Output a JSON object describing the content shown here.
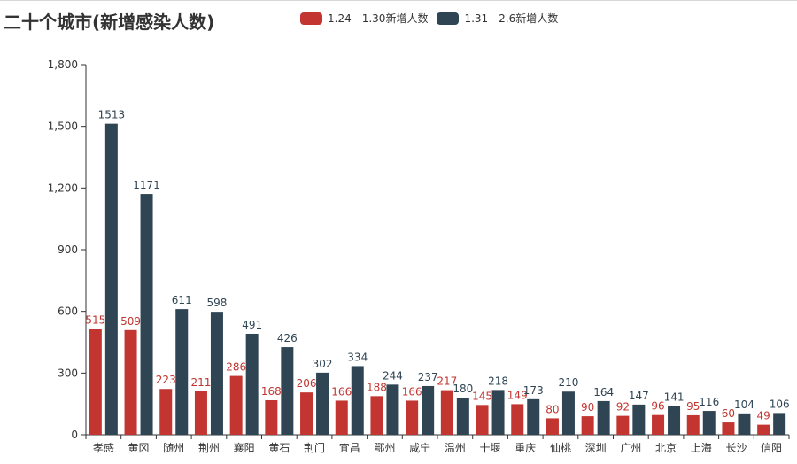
{
  "chart_data": {
    "type": "bar",
    "title": "二十个城市(新增感染人数)",
    "categories": [
      "孝感",
      "黄冈",
      "随州",
      "荆州",
      "襄阳",
      "黄石",
      "荆门",
      "宜昌",
      "鄂州",
      "咸宁",
      "温州",
      "十堰",
      "重庆",
      "仙桃",
      "深圳",
      "广州",
      "北京",
      "上海",
      "长沙",
      "信阳"
    ],
    "series": [
      {
        "name": "1.24—1.30新增人数",
        "color": "#c23531",
        "values": [
          515,
          509,
          223,
          211,
          286,
          168,
          206,
          166,
          188,
          166,
          217,
          145,
          149,
          80,
          90,
          92,
          96,
          95,
          60,
          49
        ]
      },
      {
        "name": "1.31—2.6新增人数",
        "color": "#2f4554",
        "values": [
          1513,
          1171,
          611,
          598,
          491,
          426,
          302,
          334,
          244,
          237,
          180,
          218,
          173,
          210,
          164,
          147,
          141,
          116,
          104,
          106
        ]
      }
    ],
    "ylim": [
      0,
      1800
    ],
    "yticks": [
      0,
      300,
      600,
      900,
      1200,
      1500,
      1800
    ],
    "yticks_labels": [
      "0",
      "300",
      "600",
      "900",
      "1,200",
      "1,500",
      "1,800"
    ],
    "grid": false,
    "legend_position": "top"
  }
}
